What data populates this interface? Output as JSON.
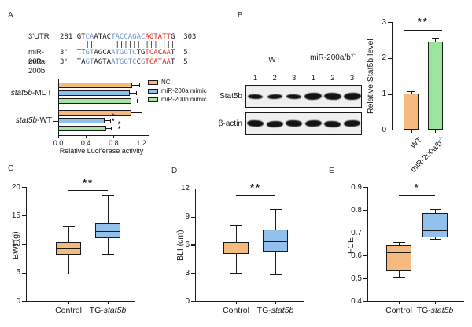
{
  "panels": {
    "a": "A",
    "b": "B",
    "c": "C",
    "d": "D",
    "e": "E"
  },
  "colors": {
    "ink": "#1a1a1a",
    "orange": "#F5BA7E",
    "blue": "#93BFEC",
    "green_a": "#A7E3A1",
    "green_b": "#99E59D",
    "seq_blue": "#6B93CF",
    "seq_red": "#E42A1D",
    "blot_bg": "#efefef",
    "band": "#141414"
  },
  "panelA": {
    "alignment": {
      "rows": [
        {
          "label": "3'UTR",
          "segments": [
            [
              "281 ",
              "k"
            ],
            [
              "GT",
              "k"
            ],
            [
              "CA",
              "b"
            ],
            [
              "ATAC",
              "k"
            ],
            [
              "TACCAGA",
              "b"
            ],
            [
              "C",
              "b"
            ],
            [
              "AGTATT",
              "r"
            ],
            [
              "G",
              "k"
            ],
            [
              "  303",
              "k"
            ]
          ]
        },
        {
          "label": "",
          "segments": [
            [
              "      ||     |||||| |||||||",
              "k"
            ]
          ]
        },
        {
          "label": "miR-200a",
          "segments": [
            [
              "3'  ",
              "k"
            ],
            [
              "TT",
              "k"
            ],
            [
              "GT",
              "b"
            ],
            [
              "AGCA",
              "k"
            ],
            [
              "ATGGTC",
              "b"
            ],
            [
              "TG",
              "k"
            ],
            [
              "TCA",
              "r"
            ],
            [
              "C",
              "k"
            ],
            [
              "AA",
              "r"
            ],
            [
              "T",
              "k"
            ],
            [
              "  5'",
              "k"
            ]
          ]
        },
        {
          "label": "miR-200b",
          "segments": [
            [
              "3'  ",
              "k"
            ],
            [
              "TA",
              "k"
            ],
            [
              "GT",
              "b"
            ],
            [
              "AGTA",
              "k"
            ],
            [
              "ATGGTC",
              "b"
            ],
            [
              "C",
              "k"
            ],
            [
              "G",
              "b"
            ],
            [
              "TCATAA",
              "r"
            ],
            [
              "T",
              "k"
            ],
            [
              "  5'",
              "k"
            ]
          ]
        }
      ]
    }
  },
  "panelB": {
    "blot": {
      "groups": [
        {
          "label": "WT"
        },
        {
          "label": "miR-200a/b^-/-^"
        }
      ],
      "lanes": [
        "1",
        "2",
        "3",
        "1",
        "2",
        "3"
      ],
      "rows": [
        {
          "label": "Stat5b",
          "bands": [
            0.4,
            0.38,
            0.4,
            1.0,
            0.95,
            1.0
          ]
        },
        {
          "label": "β-actin",
          "bands": [
            0.85,
            0.8,
            0.85,
            0.85,
            0.8,
            0.85
          ]
        }
      ]
    }
  },
  "chart_data": [
    {
      "id": "luciferase",
      "type": "bar",
      "orientation": "horizontal",
      "xlabel": "Relative Luciferase activity",
      "groups": [
        "*stat5b*-MUT",
        "*stat5b*-WT"
      ],
      "xticks": [
        0,
        0.4,
        0.8,
        1.2
      ],
      "xtick_labels": [
        "0.0",
        "0.4",
        "0.8",
        "1.2"
      ],
      "xlim": [
        0,
        1.3
      ],
      "legend_position": "top-right",
      "series": [
        {
          "name": "NC",
          "color": "#F5BA7E",
          "values": [
            1.07,
            1.06
          ],
          "errors": [
            0.1,
            0.14
          ],
          "sig": [
            "",
            ""
          ]
        },
        {
          "name": "miR-200a mimic",
          "color": "#93BFEC",
          "values": [
            1.03,
            0.67
          ],
          "errors": [
            0.09,
            0.08
          ],
          "sig": [
            "",
            "**"
          ]
        },
        {
          "name": "miR-200b mimic",
          "color": "#A7E3A1",
          "values": [
            1.06,
            0.69
          ],
          "errors": [
            0.08,
            0.07
          ],
          "sig": [
            "",
            "**"
          ]
        }
      ]
    },
    {
      "id": "stat5b-level",
      "type": "bar",
      "ylabel": "Relative Stat5b level",
      "categories": [
        "WT",
        "miR-200a/b^-/-^"
      ],
      "values": [
        1.0,
        2.45
      ],
      "errors": [
        0.08,
        0.11
      ],
      "colors": [
        "#F5BA7E",
        "#99E59D"
      ],
      "yticks": [
        0,
        1,
        2,
        3
      ],
      "ytick_labels": [
        "0",
        "1",
        "2",
        "3"
      ],
      "ylim": [
        0,
        3
      ],
      "significance": "**"
    },
    {
      "id": "bwi",
      "type": "box",
      "ylabel": "BWI (g)",
      "categories": [
        "Control",
        "TG-*stat5b*"
      ],
      "yticks": [
        0,
        5,
        10,
        15,
        20
      ],
      "ytick_labels": [
        "0",
        "5",
        "10",
        "15",
        "20"
      ],
      "ylim": [
        0,
        20
      ],
      "colors": [
        "#F5BA7E",
        "#93BFEC"
      ],
      "stats": [
        {
          "whislo": 4.8,
          "q1": 8.2,
          "med": 9.3,
          "q3": 10.4,
          "whishi": 13.1
        },
        {
          "whislo": 8.3,
          "q1": 11.0,
          "med": 12.3,
          "q3": 13.6,
          "whishi": 18.6
        }
      ],
      "significance": "**"
    },
    {
      "id": "bli",
      "type": "box",
      "ylabel": "BLI (cm)",
      "categories": [
        "Control",
        "TG-*stat5b*"
      ],
      "yticks": [
        0,
        3,
        6,
        9,
        12
      ],
      "ytick_labels": [
        "0",
        "3",
        "6",
        "9",
        "12"
      ],
      "ylim": [
        0,
        12
      ],
      "colors": [
        "#F5BA7E",
        "#93BFEC"
      ],
      "stats": [
        {
          "whislo": 3.0,
          "q1": 5.0,
          "med": 5.7,
          "q3": 6.3,
          "whishi": 8.1
        },
        {
          "whislo": 2.9,
          "q1": 5.3,
          "med": 6.4,
          "q3": 7.6,
          "whishi": 9.8
        }
      ],
      "significance": "**"
    },
    {
      "id": "fce",
      "type": "box",
      "ylabel": "FCE",
      "categories": [
        "Control",
        "TG-*stat5b*"
      ],
      "yticks": [
        0.4,
        0.5,
        0.6,
        0.7,
        0.8,
        0.9
      ],
      "ytick_labels": [
        "0.4",
        "0.5",
        "0.6",
        "0.7",
        "0.8",
        "0.9"
      ],
      "ylim": [
        0.4,
        0.9
      ],
      "colors": [
        "#F5BA7E",
        "#93BFEC"
      ],
      "stats": [
        {
          "whislo": 0.505,
          "q1": 0.53,
          "med": 0.615,
          "q3": 0.645,
          "whishi": 0.66
        },
        {
          "whislo": 0.672,
          "q1": 0.68,
          "med": 0.71,
          "q3": 0.785,
          "whishi": 0.805
        }
      ],
      "significance": "*"
    }
  ]
}
